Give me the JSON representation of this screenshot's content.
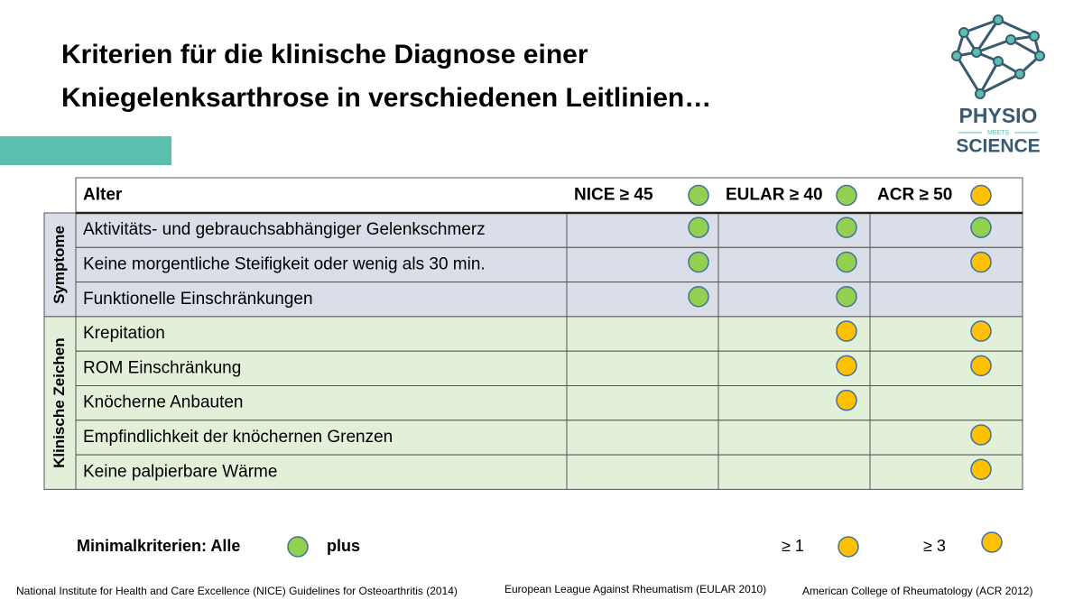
{
  "title": {
    "lines": [
      "Kriterien für die klinische Diagnose einer",
      "Kniegelenksarthrose in verschiedenen Leitlinien…"
    ]
  },
  "logo": {
    "top": "PHYSIO",
    "middle": "MEETS",
    "bottom": "SCIENCE"
  },
  "table": {
    "header": {
      "label": "Alter",
      "columns": [
        "NICE ≥ 45",
        "EULAR ≥ 40",
        "ACR ≥ 50"
      ],
      "marks": [
        "#92d050",
        "#92d050",
        "#ffc000"
      ]
    },
    "groups": [
      {
        "label": "Symptome",
        "background": "#d9dee8",
        "rows": [
          {
            "label": "Aktivitäts- und gebrauchsabhängiger Gelenkschmerz",
            "marks": [
              "#92d050",
              "#92d050",
              "#92d050"
            ]
          },
          {
            "label": "Keine morgentliche Steifigkeit oder wenig als 30 min.",
            "marks": [
              "#92d050",
              "#92d050",
              "#ffc000"
            ]
          },
          {
            "label": "Funktionelle Einschränkungen",
            "marks": [
              "#92d050",
              "#92d050",
              null
            ]
          }
        ]
      },
      {
        "label": "Klinische Zeichen",
        "background": "#e2efd9",
        "rows": [
          {
            "label": "Krepitation",
            "marks": [
              null,
              "#ffc000",
              "#ffc000"
            ]
          },
          {
            "label": "ROM Einschränkung",
            "marks": [
              null,
              "#ffc000",
              "#ffc000"
            ]
          },
          {
            "label": "Knöcherne Anbauten",
            "marks": [
              null,
              "#ffc000",
              null
            ]
          },
          {
            "label": "Empfindlichkeit der knöchernen Grenzen",
            "marks": [
              null,
              null,
              "#ffc000"
            ]
          },
          {
            "label": "Keine palpierbare Wärme",
            "marks": [
              null,
              null,
              "#ffc000"
            ]
          }
        ]
      }
    ]
  },
  "legend": {
    "lead": "Minimalkriterien:  Alle",
    "lead_mark": "#92d050",
    "plus": "plus",
    "items": [
      {
        "label": "≥ 1",
        "mark": "#ffc000"
      },
      {
        "label": "≥ 3",
        "mark": "#ffc000"
      }
    ]
  },
  "references": [
    "National Institute for Health and Care Excellence (NICE) Guidelines for Osteoarthritis (2014)",
    "European League Against Rheumatism (EULAR 2010)",
    "American College of Rheumatology (ACR 2012)"
  ]
}
